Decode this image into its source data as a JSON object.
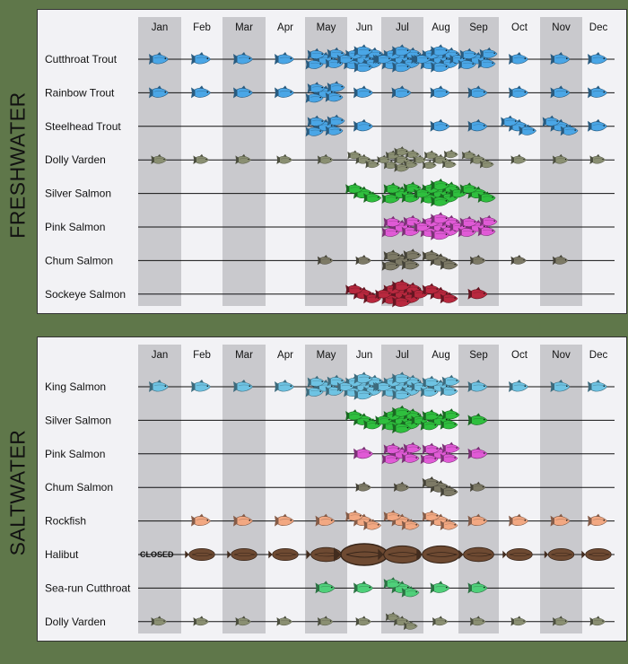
{
  "chart_data": [
    {
      "type": "seasonal-timeline",
      "title": "FRESHWATER",
      "months": [
        "Jan",
        "Feb",
        "Mar",
        "Apr",
        "May",
        "Jun",
        "Jul",
        "Aug",
        "Sep",
        "Oct",
        "Nov",
        "Dec"
      ],
      "abundance_scale": "1 = present, 2 = moderate, 3 = good, 4 = peak",
      "series": [
        {
          "name": "Cutthroat Trout",
          "color": "#4aa6e6",
          "abundance": [
            1,
            1,
            1,
            1,
            3,
            4,
            4,
            4,
            3,
            1,
            1,
            1
          ]
        },
        {
          "name": "Rainbow Trout",
          "color": "#4aa6e6",
          "abundance": [
            1,
            1,
            1,
            1,
            3,
            1,
            1,
            1,
            1,
            1,
            1,
            1
          ]
        },
        {
          "name": "Steelhead Trout",
          "color": "#4aa6e6",
          "abundance": [
            0,
            0,
            0,
            0,
            3,
            1,
            0,
            1,
            1,
            2,
            2,
            1
          ]
        },
        {
          "name": "Dolly Varden",
          "color": "#8a8f72",
          "abundance": [
            1,
            1,
            1,
            1,
            1,
            2,
            4,
            3,
            2,
            1,
            1,
            1
          ]
        },
        {
          "name": "Silver Salmon",
          "color": "#2fbf3e",
          "abundance": [
            0,
            0,
            0,
            0,
            0,
            2,
            3,
            4,
            2,
            0,
            0,
            0
          ]
        },
        {
          "name": "Pink Salmon",
          "color": "#e05ad6",
          "abundance": [
            0,
            0,
            0,
            0,
            0,
            0,
            3,
            4,
            3,
            0,
            0,
            0
          ]
        },
        {
          "name": "Chum Salmon",
          "color": "#7d7a66",
          "abundance": [
            0,
            0,
            0,
            0,
            1,
            1,
            3,
            2,
            1,
            1,
            1,
            0
          ]
        },
        {
          "name": "Sockeye Salmon",
          "color": "#b8283e",
          "abundance": [
            0,
            0,
            0,
            0,
            0,
            2,
            4,
            2,
            1,
            0,
            0,
            0
          ]
        }
      ]
    },
    {
      "type": "seasonal-timeline",
      "title": "SALTWATER",
      "months": [
        "Jan",
        "Feb",
        "Mar",
        "Apr",
        "May",
        "Jun",
        "Jul",
        "Aug",
        "Sep",
        "Oct",
        "Nov",
        "Dec"
      ],
      "abundance_scale": "1 = present, 2 = moderate, 3 = good, 4 = peak",
      "series": [
        {
          "name": "King Salmon",
          "color": "#6ec3e3",
          "abundance": [
            1,
            1,
            1,
            1,
            3,
            4,
            4,
            3,
            1,
            1,
            1,
            1
          ]
        },
        {
          "name": "Silver Salmon",
          "color": "#2fbf3e",
          "abundance": [
            0,
            0,
            0,
            0,
            0,
            2,
            4,
            3,
            1,
            0,
            0,
            0
          ]
        },
        {
          "name": "Pink Salmon",
          "color": "#e05ad6",
          "abundance": [
            0,
            0,
            0,
            0,
            0,
            1,
            3,
            3,
            1,
            0,
            0,
            0
          ]
        },
        {
          "name": "Chum Salmon",
          "color": "#7d7a66",
          "abundance": [
            0,
            0,
            0,
            0,
            0,
            1,
            1,
            2,
            1,
            0,
            0,
            0
          ]
        },
        {
          "name": "Rockfish",
          "color": "#f2a882",
          "abundance": [
            0,
            1,
            1,
            1,
            1,
            2,
            2,
            2,
            1,
            1,
            1,
            1
          ]
        },
        {
          "name": "Halibut",
          "color": "#6e4a32",
          "abundance": [
            1,
            1,
            1,
            1,
            2,
            4,
            3,
            3,
            2,
            1,
            1,
            1
          ],
          "note": "CLOSED"
        },
        {
          "name": "Sea-run Cutthroat",
          "color": "#4fd07a",
          "abundance": [
            0,
            0,
            0,
            0,
            1,
            1,
            2,
            1,
            1,
            0,
            0,
            0
          ]
        },
        {
          "name": "Dolly Varden",
          "color": "#8a8f72",
          "abundance": [
            1,
            1,
            1,
            1,
            1,
            1,
            2,
            1,
            1,
            1,
            1,
            1
          ]
        }
      ]
    }
  ]
}
